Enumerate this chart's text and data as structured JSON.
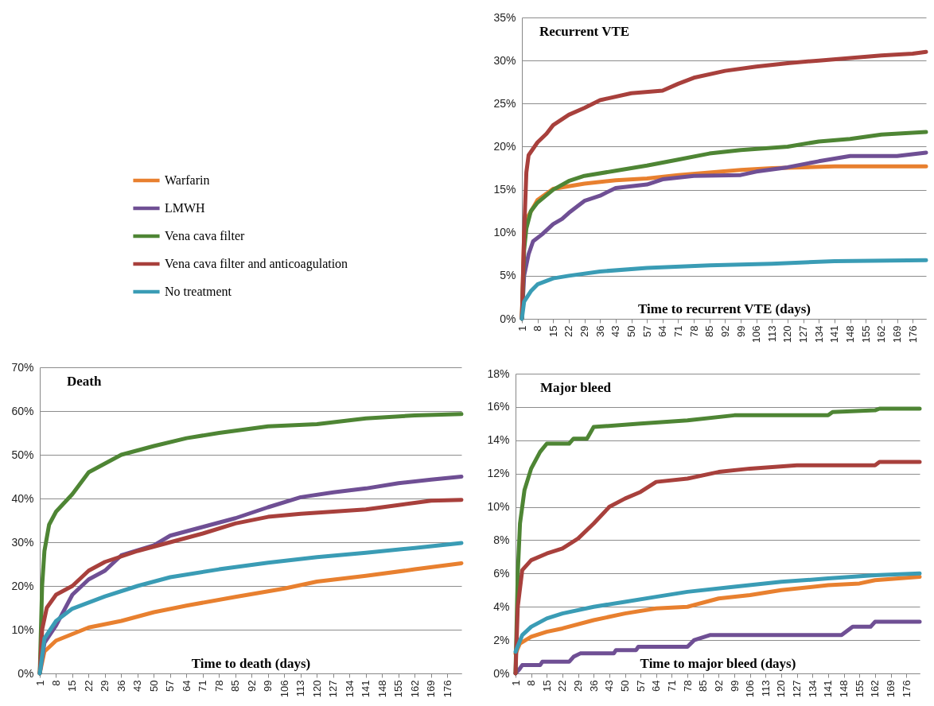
{
  "chart_data": [
    {
      "type": "line",
      "title": "Recurrent VTE",
      "xlabel": "Time to recurrent VTE (days)",
      "legend": "left",
      "grid": "y",
      "xlim": [
        1,
        182
      ],
      "xticks": [
        1,
        8,
        15,
        22,
        29,
        36,
        43,
        50,
        57,
        64,
        71,
        78,
        85,
        92,
        99,
        106,
        113,
        120,
        127,
        134,
        141,
        148,
        155,
        162,
        169,
        176
      ],
      "ylim": [
        0,
        35
      ],
      "yticks": [
        {
          "value": 0,
          "label": "0%"
        },
        {
          "value": 5,
          "label": "5%"
        },
        {
          "value": 10,
          "label": "10%"
        },
        {
          "value": 15,
          "label": "15%"
        },
        {
          "value": 20,
          "label": "20%"
        },
        {
          "value": 25,
          "label": "25%"
        },
        {
          "value": 30,
          "label": "30%"
        },
        {
          "value": 35,
          "label": "35%"
        }
      ],
      "series": [
        {
          "name": "Warfarin",
          "color": "#e8802f",
          "x": [
            1,
            2,
            4,
            8,
            15,
            29,
            43,
            57,
            71,
            85,
            99,
            113,
            141,
            182
          ],
          "values": [
            0,
            10,
            12,
            13.8,
            15.1,
            15.7,
            16.1,
            16.3,
            16.7,
            17,
            17.3,
            17.5,
            17.7,
            17.7
          ]
        },
        {
          "name": "LMWH",
          "color": "#6f4f94",
          "x": [
            1,
            2,
            4,
            6,
            10,
            15,
            19,
            22,
            29,
            36,
            43,
            57,
            64,
            78,
            99,
            106,
            120,
            134,
            148,
            169,
            182
          ],
          "values": [
            0,
            5,
            7.5,
            9,
            9.8,
            11,
            11.6,
            12.3,
            13.7,
            14.3,
            15.2,
            15.6,
            16.2,
            16.6,
            16.7,
            17.1,
            17.6,
            18.3,
            18.9,
            18.9,
            19.3
          ]
        },
        {
          "name": "Vena cava filter",
          "color": "#4e8534",
          "x": [
            1,
            2,
            3,
            5,
            8,
            15,
            22,
            29,
            43,
            57,
            71,
            85,
            99,
            120,
            134,
            148,
            162,
            182
          ],
          "values": [
            0,
            8,
            10.5,
            12.5,
            13.5,
            15,
            16,
            16.6,
            17.2,
            17.8,
            18.5,
            19.2,
            19.6,
            20,
            20.6,
            20.9,
            21.4,
            21.7
          ]
        },
        {
          "name": "Vena cava filter and anticoagulation",
          "color": "#a8403c",
          "x": [
            1,
            2,
            3,
            4,
            8,
            12,
            15,
            22,
            29,
            36,
            50,
            64,
            71,
            78,
            92,
            106,
            120,
            134,
            148,
            162,
            176,
            182
          ],
          "values": [
            0,
            10,
            17,
            19,
            20.5,
            21.5,
            22.5,
            23.7,
            24.5,
            25.4,
            26.2,
            26.5,
            27.3,
            28,
            28.8,
            29.3,
            29.7,
            30,
            30.3,
            30.6,
            30.8,
            31
          ]
        },
        {
          "name": "No treatment",
          "color": "#3a9cb5",
          "x": [
            1,
            2,
            5,
            8,
            15,
            22,
            36,
            57,
            85,
            113,
            141,
            182
          ],
          "values": [
            0,
            2,
            3.2,
            4,
            4.7,
            5,
            5.5,
            5.9,
            6.2,
            6.4,
            6.7,
            6.8
          ]
        }
      ]
    },
    {
      "type": "line",
      "title": "Death",
      "xlabel": "Time to death (days)",
      "grid": "y",
      "xlim": [
        1,
        182
      ],
      "xticks": [
        1,
        8,
        15,
        22,
        29,
        36,
        43,
        50,
        57,
        64,
        71,
        78,
        85,
        92,
        99,
        106,
        113,
        120,
        127,
        134,
        141,
        148,
        155,
        162,
        169,
        176
      ],
      "ylim": [
        0,
        70
      ],
      "yticks": [
        {
          "value": 0,
          "label": "0%"
        },
        {
          "value": 10,
          "label": "10%"
        },
        {
          "value": 20,
          "label": "20%"
        },
        {
          "value": 30,
          "label": "30%"
        },
        {
          "value": 40,
          "label": "40%"
        },
        {
          "value": 50,
          "label": "50%"
        },
        {
          "value": 60,
          "label": "60%"
        },
        {
          "value": 70,
          "label": "70%"
        }
      ],
      "series": [
        {
          "color": "#e8802f",
          "x": [
            1,
            3,
            8,
            15,
            22,
            36,
            50,
            64,
            85,
            106,
            120,
            141,
            162,
            182
          ],
          "values": [
            0,
            5,
            7.5,
            9,
            10.5,
            12,
            14,
            15.5,
            17.5,
            19.4,
            21,
            22.3,
            23.8,
            25.2
          ]
        },
        {
          "color": "#6f4f94",
          "x": [
            1,
            3,
            8,
            15,
            22,
            29,
            36,
            50,
            57,
            71,
            85,
            99,
            113,
            127,
            141,
            155,
            169,
            182
          ],
          "values": [
            0,
            7,
            11,
            18,
            21.5,
            23.5,
            27,
            29.3,
            31.5,
            33.5,
            35.5,
            38,
            40.3,
            41.4,
            42.3,
            43.5,
            44.3,
            45
          ]
        },
        {
          "color": "#4e8534",
          "x": [
            1,
            2,
            3,
            5,
            8,
            15,
            22,
            29,
            36,
            50,
            64,
            78,
            99,
            120,
            141,
            162,
            182
          ],
          "values": [
            0,
            20,
            28,
            34,
            37,
            41,
            46,
            48,
            50,
            52,
            53.8,
            55,
            56.5,
            57,
            58.3,
            59,
            59.3
          ]
        },
        {
          "color": "#a8403c",
          "x": [
            1,
            2,
            4,
            8,
            15,
            22,
            29,
            43,
            57,
            71,
            85,
            99,
            113,
            127,
            141,
            155,
            169,
            182
          ],
          "values": [
            0,
            10,
            15,
            18,
            20,
            23.5,
            25.5,
            28,
            30,
            32,
            34.3,
            35.8,
            36.5,
            37,
            37.5,
            38.5,
            39.5,
            39.7
          ]
        },
        {
          "color": "#3a9cb5",
          "x": [
            1,
            3,
            8,
            15,
            29,
            43,
            57,
            78,
            99,
            120,
            141,
            162,
            182
          ],
          "values": [
            0,
            8,
            12,
            14.8,
            17.6,
            20,
            22,
            23.8,
            25.3,
            26.6,
            27.6,
            28.7,
            29.8
          ]
        }
      ]
    },
    {
      "type": "line",
      "title": "Major bleed",
      "xlabel": "Time to major bleed (days)",
      "grid": "y",
      "xlim": [
        1,
        182
      ],
      "xticks": [
        1,
        8,
        15,
        22,
        29,
        36,
        43,
        50,
        57,
        64,
        71,
        78,
        85,
        92,
        99,
        106,
        113,
        120,
        127,
        134,
        141,
        148,
        155,
        162,
        169,
        176
      ],
      "ylim": [
        0,
        18
      ],
      "yticks": [
        {
          "value": 0,
          "label": "0%"
        },
        {
          "value": 2,
          "label": "2%"
        },
        {
          "value": 4,
          "label": "4%"
        },
        {
          "value": 6,
          "label": "6%"
        },
        {
          "value": 8,
          "label": "8%"
        },
        {
          "value": 10,
          "label": "10%"
        },
        {
          "value": 12,
          "label": "12%"
        },
        {
          "value": 14,
          "label": "14%"
        },
        {
          "value": 16,
          "label": "16%"
        },
        {
          "value": 18,
          "label": "18%"
        }
      ],
      "series": [
        {
          "color": "#e8802f",
          "x": [
            1,
            3,
            8,
            15,
            22,
            36,
            50,
            64,
            78,
            92,
            106,
            120,
            141,
            155,
            162,
            182
          ],
          "values": [
            1.2,
            1.8,
            2.2,
            2.5,
            2.7,
            3.2,
            3.6,
            3.9,
            4,
            4.5,
            4.7,
            5,
            5.3,
            5.4,
            5.6,
            5.8
          ]
        },
        {
          "color": "#6f4f94",
          "x": [
            1,
            3,
            4,
            12,
            13,
            25,
            27,
            30,
            45,
            46,
            55,
            56,
            78,
            81,
            88,
            147,
            152,
            160,
            162,
            182
          ],
          "values": [
            0,
            0.3,
            0.5,
            0.5,
            0.7,
            0.7,
            1,
            1.2,
            1.2,
            1.4,
            1.4,
            1.6,
            1.6,
            2,
            2.3,
            2.3,
            2.8,
            2.8,
            3.1,
            3.1
          ]
        },
        {
          "color": "#4e8534",
          "x": [
            1,
            2,
            3,
            5,
            8,
            12,
            15,
            25,
            27,
            33,
            36,
            57,
            78,
            99,
            141,
            143,
            162,
            164,
            182
          ],
          "values": [
            0,
            6,
            9,
            11,
            12.3,
            13.3,
            13.8,
            13.8,
            14.1,
            14.1,
            14.8,
            15,
            15.2,
            15.5,
            15.5,
            15.7,
            15.8,
            15.9,
            15.9
          ]
        },
        {
          "color": "#a8403c",
          "x": [
            1,
            2,
            4,
            8,
            15,
            22,
            29,
            36,
            43,
            50,
            57,
            64,
            78,
            92,
            106,
            127,
            162,
            164,
            182
          ],
          "values": [
            0,
            4,
            6.2,
            6.8,
            7.2,
            7.5,
            8.1,
            9,
            10,
            10.5,
            10.9,
            11.5,
            11.7,
            12.1,
            12.3,
            12.5,
            12.5,
            12.7,
            12.7
          ]
        },
        {
          "color": "#3a9cb5",
          "x": [
            1,
            4,
            8,
            15,
            22,
            36,
            50,
            64,
            78,
            99,
            120,
            141,
            162,
            182
          ],
          "values": [
            1.3,
            2.3,
            2.8,
            3.3,
            3.6,
            4,
            4.3,
            4.6,
            4.9,
            5.2,
            5.5,
            5.7,
            5.9,
            6
          ]
        }
      ]
    }
  ]
}
